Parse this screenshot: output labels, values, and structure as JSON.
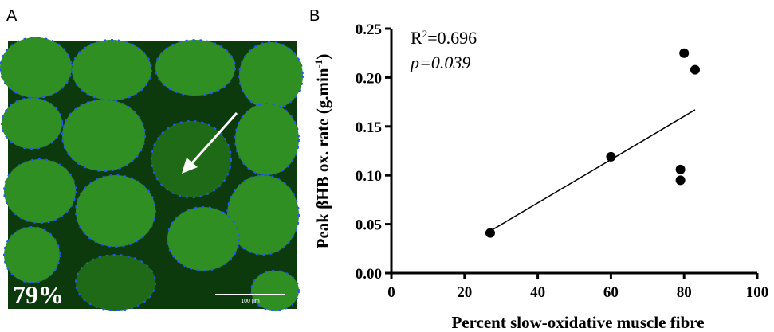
{
  "panel_a": {
    "label": "A",
    "overlay": "79%",
    "scale_bar": "100 µm"
  },
  "chart_data": {
    "type": "scatter",
    "panel_label": "B",
    "x_label": "Percent slow-oxidative muscle fibre",
    "y_label": {
      "main": "Peak βHB ox. rate (g.min",
      "sup": "-1",
      "end": ")"
    },
    "annotation": {
      "r_prefix": "R",
      "r_sup": "2",
      "r_value": "=0.696",
      "p": "p=0.039"
    },
    "x": [
      27,
      60,
      79,
      79,
      80,
      83
    ],
    "values": [
      0.041,
      0.119,
      0.106,
      0.095,
      0.225,
      0.208
    ],
    "color": "#000000",
    "trendline": {
      "x": [
        27,
        83
      ],
      "y": [
        0.043,
        0.167
      ]
    },
    "xlim": [
      0,
      100
    ],
    "xticks": [
      0,
      20,
      40,
      60,
      80,
      100
    ],
    "ylim": [
      0,
      0.25
    ],
    "yticks": [
      {
        "value": 0,
        "label": "0.00"
      },
      {
        "value": 0.05,
        "label": "0.05"
      },
      {
        "value": 0.1,
        "label": "0.10"
      },
      {
        "value": 0.15,
        "label": "0.15"
      },
      {
        "value": 0.2,
        "label": "0.20"
      },
      {
        "value": 0.25,
        "label": "0.25"
      }
    ]
  }
}
